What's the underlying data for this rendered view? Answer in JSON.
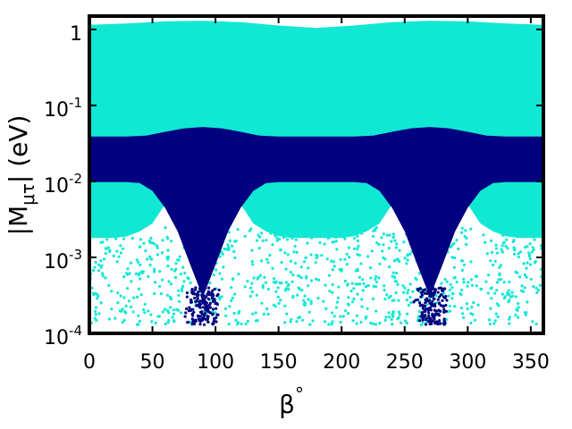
{
  "chart_data": {
    "type": "scatter",
    "title": "",
    "xlabel": "β°",
    "ylabel": "|Mμτ| (eV)",
    "ylabel_parts": {
      "pre": "|M",
      "sub": "μτ",
      "post": "| (eV)"
    },
    "xlabel_parts": {
      "base": "β",
      "sup": "°"
    },
    "xlim": [
      0,
      360
    ],
    "ylim": [
      0.0001,
      1.5
    ],
    "yscale": "log",
    "grid": false,
    "legend": "none",
    "x_ticks": [
      {
        "value": 0,
        "label": "0"
      },
      {
        "value": 50,
        "label": "50"
      },
      {
        "value": 100,
        "label": "100"
      },
      {
        "value": 150,
        "label": "150"
      },
      {
        "value": 200,
        "label": "200"
      },
      {
        "value": 250,
        "label": "250"
      },
      {
        "value": 300,
        "label": "300"
      },
      {
        "value": 350,
        "label": "350"
      }
    ],
    "y_ticks": [
      {
        "value": 0.0001,
        "base": "10",
        "exp": "-4"
      },
      {
        "value": 0.001,
        "base": "10",
        "exp": "-3"
      },
      {
        "value": 0.01,
        "base": "10",
        "exp": "-2"
      },
      {
        "value": 0.1,
        "base": "10",
        "exp": "-1"
      },
      {
        "value": 1,
        "base": "1",
        "exp": ""
      }
    ],
    "series": [
      {
        "color": "#10e8d4",
        "dense_region": {
          "upper": {
            "x": [
              0,
              30,
              60,
              90,
              120,
              150,
              180,
              210,
              240,
              270,
              300,
              330,
              360
            ],
            "y": [
              1.15,
              1.2,
              1.28,
              1.3,
              1.25,
              1.13,
              1.05,
              1.13,
              1.25,
              1.3,
              1.28,
              1.2,
              1.15
            ]
          },
          "lower": {
            "x": [
              0,
              10,
              20,
              30,
              40,
              50,
              60,
              90,
              120,
              130,
              140,
              150,
              160,
              170,
              180,
              190,
              200,
              210,
              220,
              230,
              240,
              270,
              300,
              310,
              320,
              330,
              340,
              350,
              360
            ],
            "y": [
              0.0018,
              0.0018,
              0.0018,
              0.0019,
              0.0022,
              0.0028,
              0.005,
              0.009,
              0.005,
              0.0028,
              0.0022,
              0.0019,
              0.0018,
              0.0018,
              0.0018,
              0.0018,
              0.0018,
              0.0019,
              0.0022,
              0.0028,
              0.005,
              0.009,
              0.005,
              0.0028,
              0.0022,
              0.0019,
              0.0018,
              0.0018,
              0.0018
            ]
          }
        },
        "scatter_band": {
          "y_min": 0.00013,
          "y_max": 0.0025
        }
      },
      {
        "color": "#000080",
        "dense_region": {
          "upper": {
            "x": [
              0,
              15,
              30,
              45,
              60,
              75,
              90,
              105,
              120,
              135,
              150,
              165,
              180,
              195,
              210,
              225,
              240,
              255,
              270,
              285,
              300,
              315,
              330,
              345,
              360
            ],
            "y": [
              0.039,
              0.039,
              0.039,
              0.04,
              0.045,
              0.05,
              0.052,
              0.05,
              0.045,
              0.04,
              0.039,
              0.039,
              0.039,
              0.039,
              0.039,
              0.04,
              0.045,
              0.05,
              0.052,
              0.05,
              0.045,
              0.04,
              0.039,
              0.039,
              0.039
            ]
          },
          "lower": {
            "x": [
              0,
              20,
              30,
              40,
              50,
              60,
              70,
              80,
              90,
              100,
              110,
              120,
              130,
              140,
              150,
              160,
              170,
              180,
              200,
              210,
              220,
              230,
              240,
              250,
              260,
              270,
              280,
              290,
              300,
              310,
              320,
              330,
              340,
              360
            ],
            "y": [
              0.0098,
              0.0098,
              0.0098,
              0.0095,
              0.0075,
              0.0045,
              0.0022,
              0.0008,
              0.0003,
              0.0008,
              0.0022,
              0.0045,
              0.0075,
              0.0095,
              0.0098,
              0.0098,
              0.0098,
              0.0098,
              0.0098,
              0.0098,
              0.0095,
              0.0075,
              0.0045,
              0.0022,
              0.0008,
              0.0003,
              0.0008,
              0.0022,
              0.0045,
              0.0075,
              0.0095,
              0.0098,
              0.0098,
              0.0098
            ]
          }
        },
        "scatter_clusters": [
          {
            "x_center": 90,
            "x_spread": 15,
            "y_min": 0.00013,
            "y_max": 0.0004
          },
          {
            "x_center": 270,
            "x_spread": 15,
            "y_min": 0.00013,
            "y_max": 0.0004
          }
        ]
      }
    ]
  }
}
